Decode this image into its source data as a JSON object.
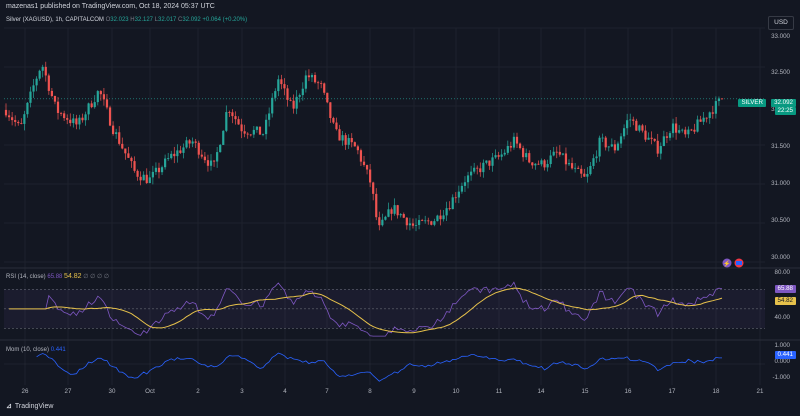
{
  "header": {
    "publish_line": "mazenas1 published on TradingView.com, Oct 18, 2024 05:37 UTC"
  },
  "currency_button": "USD",
  "legend": {
    "symbol": "Silver (XAGUSD), 1h, CAPITALCOM",
    "open_label": "O",
    "open": "32.023",
    "high_label": "H",
    "high": "32.127",
    "low_label": "L",
    "low": "32.017",
    "close_label": "C",
    "close": "32.092",
    "change": "+0.064 (+0.20%)"
  },
  "price_axis": [
    "33.000",
    "32.500",
    "32.000",
    "31.500",
    "31.000",
    "30.500",
    "30.000"
  ],
  "price_tag": {
    "label": "SILVER",
    "value": "32.092",
    "countdown": "22:25"
  },
  "rsi": {
    "legend": "RSI (14, close)",
    "v1": "65.88",
    "v2": "54.82",
    "extra": "∅ ∅ ∅ ∅",
    "axis": [
      "80.00",
      "40.00"
    ],
    "tag_rsi": "65.88",
    "tag_ma": "54.82"
  },
  "mom": {
    "legend": "Mom (10, close)",
    "value": "0.441",
    "axis": [
      "1.000",
      "0.000",
      "-1.000"
    ],
    "tag": "0.441"
  },
  "time_axis": [
    "26",
    "27",
    "30",
    "Oct",
    "2",
    "3",
    "4",
    "7",
    "8",
    "9",
    "10",
    "11",
    "14",
    "15",
    "16",
    "17",
    "18",
    "21"
  ],
  "footer": {
    "brand": "TradingView"
  },
  "colors": {
    "up": "#26a69a",
    "down": "#ef5350",
    "background": "#131722",
    "rsi_line": "#7e57c2",
    "rsi_ma": "#e6c14b",
    "mom_line": "#2962ff"
  },
  "chart_data": {
    "type": "candlestick",
    "symbol": "XAGUSD",
    "interval": "1h",
    "ylim": [
      30.0,
      33.0
    ],
    "anchors": [
      [
        0,
        31.95
      ],
      [
        0.02,
        31.7
      ],
      [
        0.04,
        32.3
      ],
      [
        0.05,
        32.55
      ],
      [
        0.07,
        31.95
      ],
      [
        0.1,
        31.75
      ],
      [
        0.13,
        32.2
      ],
      [
        0.15,
        31.7
      ],
      [
        0.18,
        31.15
      ],
      [
        0.2,
        31.05
      ],
      [
        0.23,
        31.35
      ],
      [
        0.26,
        31.55
      ],
      [
        0.29,
        31.2
      ],
      [
        0.31,
        32.0
      ],
      [
        0.33,
        31.7
      ],
      [
        0.36,
        31.65
      ],
      [
        0.38,
        32.35
      ],
      [
        0.4,
        31.95
      ],
      [
        0.42,
        32.4
      ],
      [
        0.44,
        32.25
      ],
      [
        0.46,
        31.65
      ],
      [
        0.49,
        31.45
      ],
      [
        0.51,
        31.0
      ],
      [
        0.52,
        30.4
      ],
      [
        0.54,
        30.7
      ],
      [
        0.57,
        30.45
      ],
      [
        0.6,
        30.55
      ],
      [
        0.62,
        30.75
      ],
      [
        0.64,
        31.05
      ],
      [
        0.67,
        31.25
      ],
      [
        0.69,
        31.35
      ],
      [
        0.71,
        31.55
      ],
      [
        0.73,
        31.3
      ],
      [
        0.75,
        31.25
      ],
      [
        0.77,
        31.4
      ],
      [
        0.79,
        31.2
      ],
      [
        0.81,
        31.05
      ],
      [
        0.83,
        31.55
      ],
      [
        0.85,
        31.45
      ],
      [
        0.87,
        31.85
      ],
      [
        0.89,
        31.65
      ],
      [
        0.91,
        31.45
      ],
      [
        0.93,
        31.75
      ],
      [
        0.95,
        31.6
      ],
      [
        0.98,
        31.9
      ],
      [
        1.0,
        32.09
      ]
    ],
    "rsi_ylim": [
      20,
      90
    ],
    "mom_ylim": [
      -1.3,
      1.3
    ]
  }
}
